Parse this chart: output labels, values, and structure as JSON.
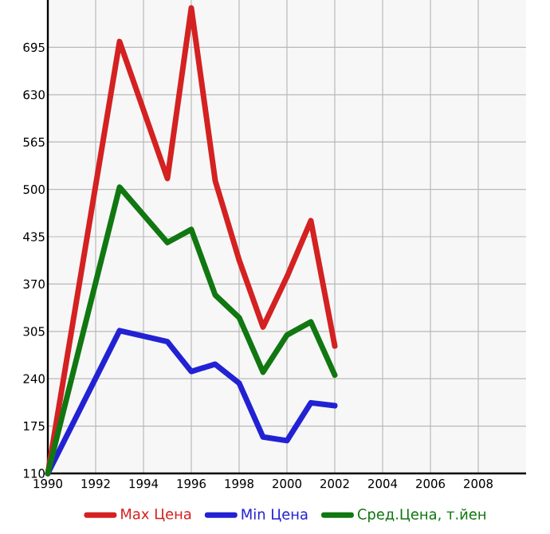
{
  "chart_data": {
    "type": "line",
    "x": [
      1990,
      1993,
      1995,
      1996,
      1997,
      1998,
      1999,
      2000,
      2001,
      2002
    ],
    "series": [
      {
        "name": "Max Цена",
        "color": "#d42121",
        "values": [
          110,
          703,
          515,
          749,
          512,
          403,
          311,
          380,
          457,
          285
        ]
      },
      {
        "name": "Min Цена",
        "color": "#2222d4",
        "values": [
          110,
          306,
          291,
          250,
          260,
          234,
          160,
          155,
          207,
          203
        ]
      },
      {
        "name": "Сред.Цена, т.йен",
        "color": "#117711",
        "values": [
          110,
          503,
          427,
          445,
          355,
          324,
          249,
          300,
          318,
          245
        ]
      }
    ],
    "xlim": [
      1990,
      2010
    ],
    "xticks": [
      1990,
      1992,
      1994,
      1996,
      1998,
      2000,
      2002,
      2004,
      2006,
      2008
    ],
    "ylim": [
      110,
      760
    ],
    "yticks": [
      110,
      175,
      240,
      305,
      370,
      435,
      500,
      565,
      630,
      695
    ],
    "grid": true,
    "legend": "bottom",
    "marker": "none",
    "line_style": "solid"
  }
}
